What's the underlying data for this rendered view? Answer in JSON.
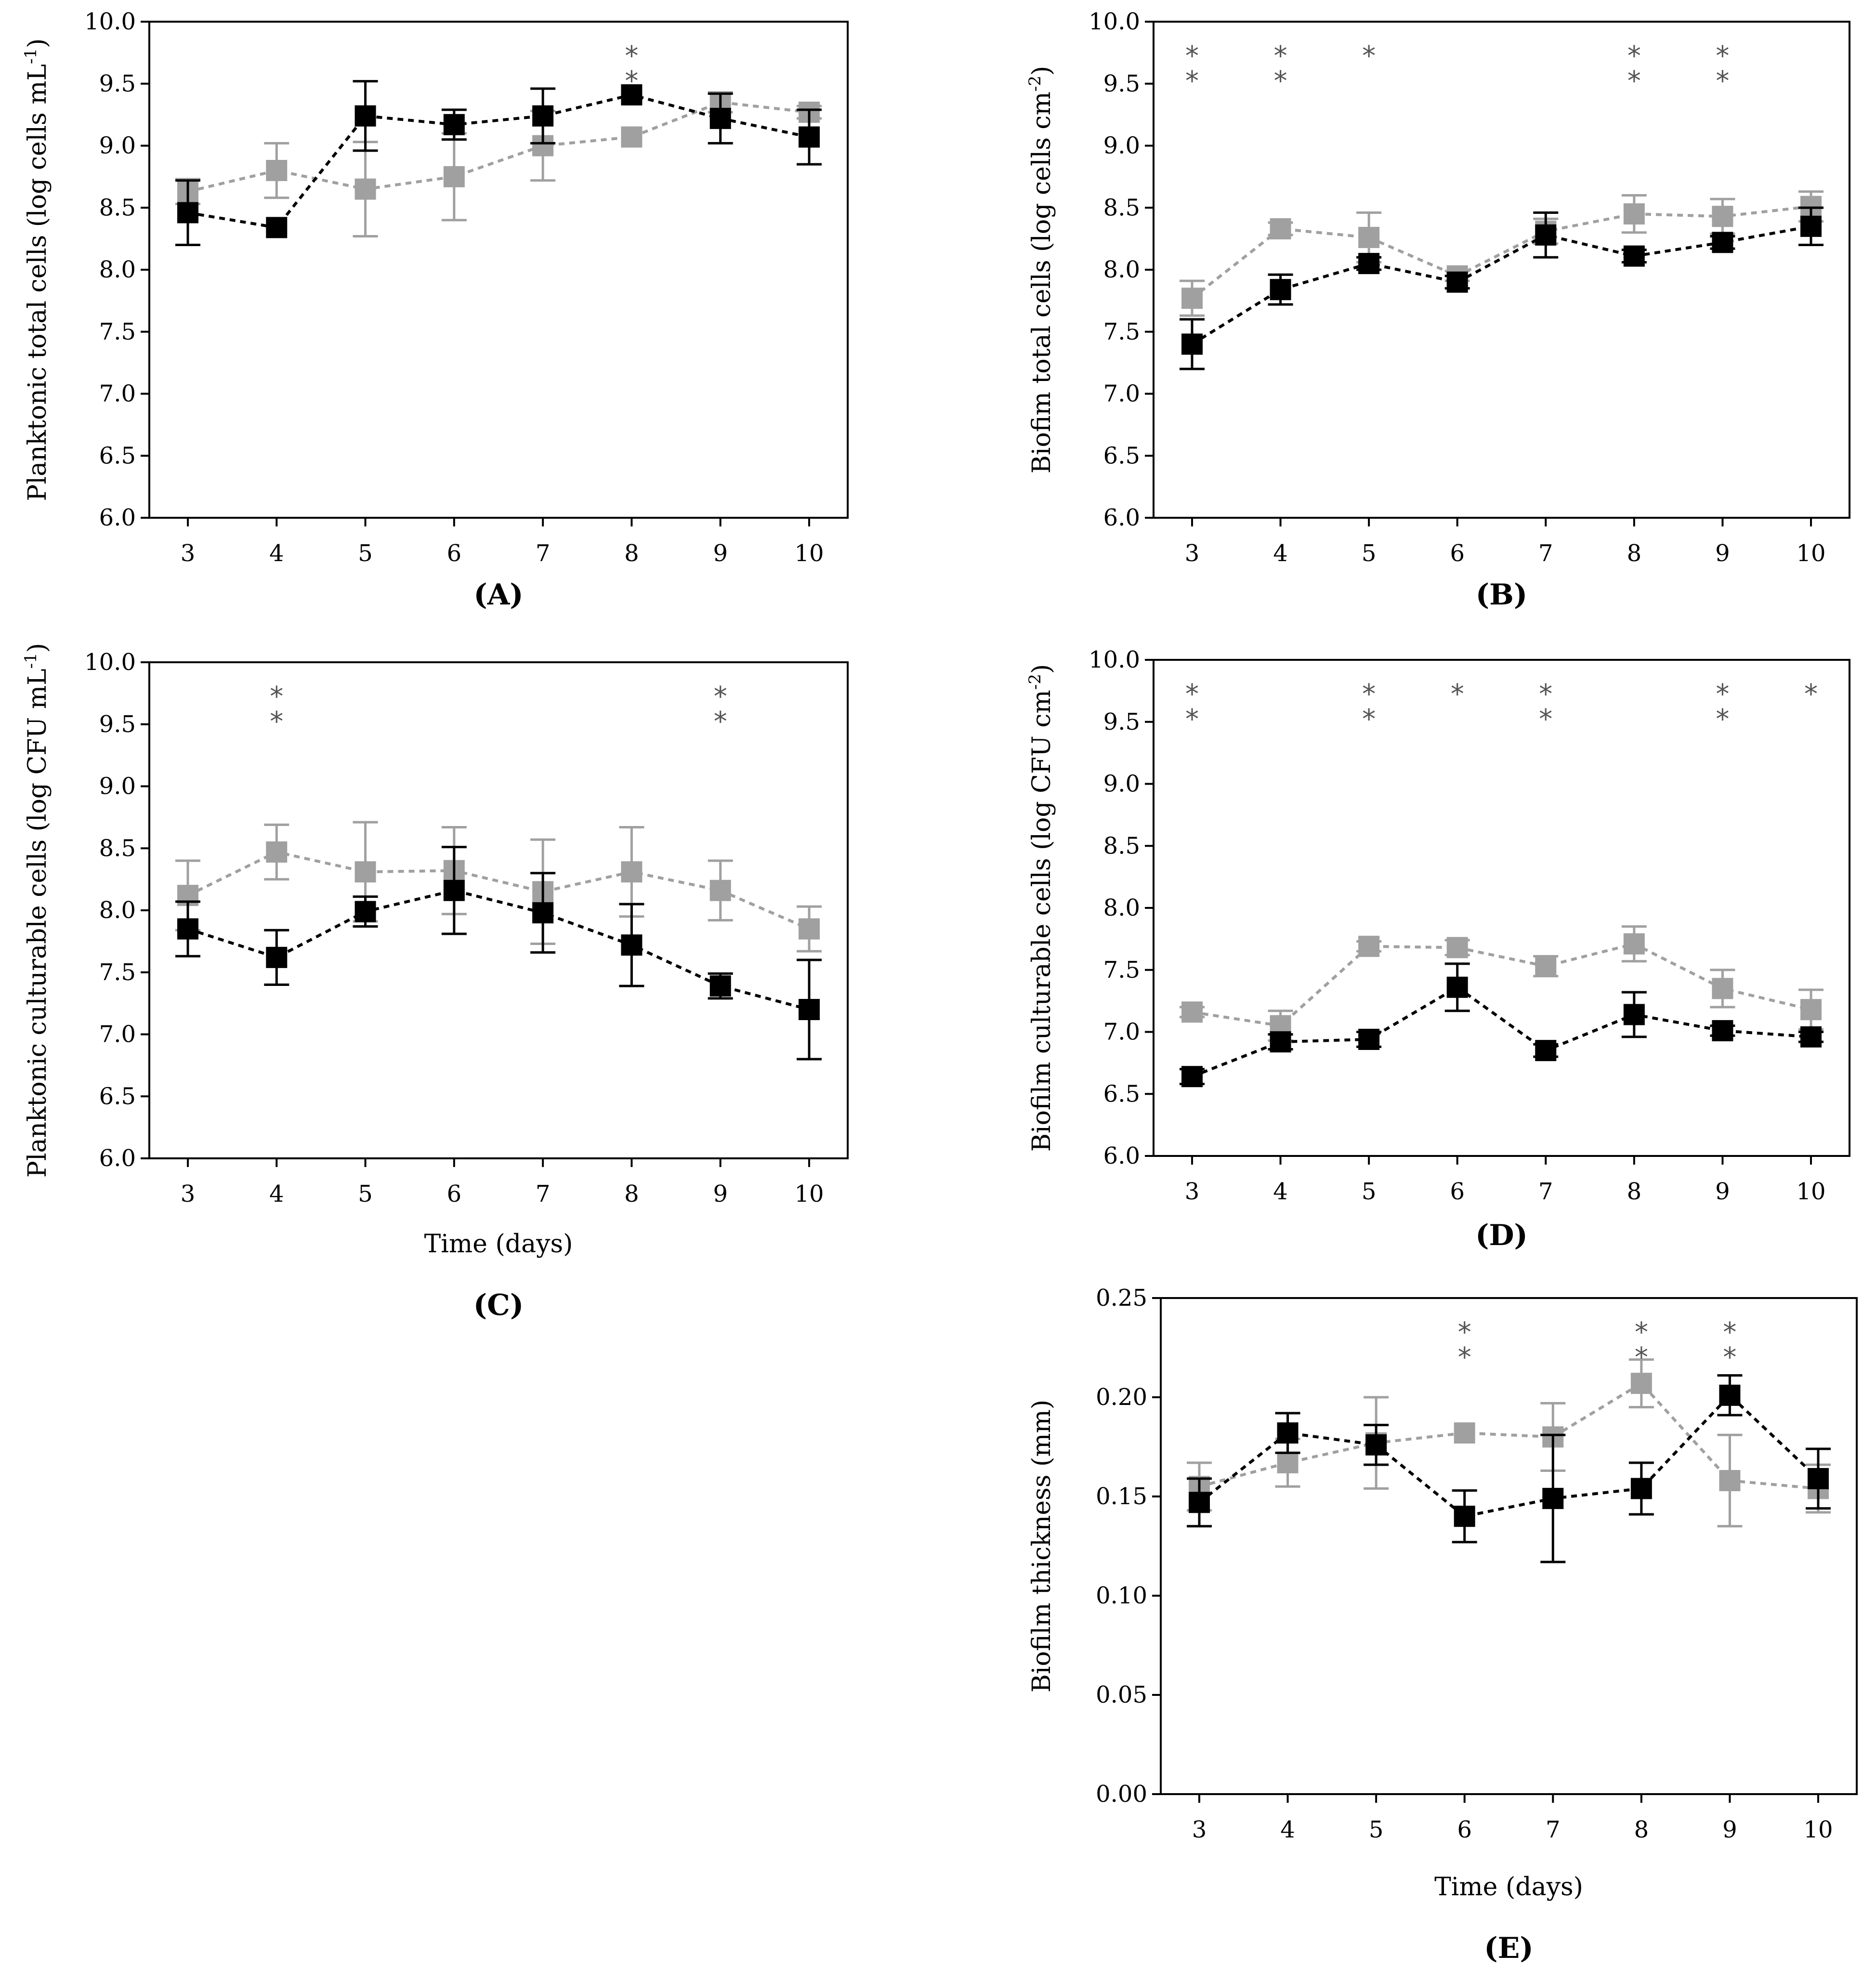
{
  "chart_data": [
    {
      "id": "A",
      "type": "line",
      "panel_label": "(A)",
      "xlabel": "",
      "ylabel": "Planktonic total cells (log cells mL-1)",
      "ylabel_parts": [
        "Planktonic total cells (log cells mL",
        "-1",
        ")"
      ],
      "x": [
        3,
        4,
        5,
        6,
        7,
        8,
        9,
        10
      ],
      "x_ticks": [
        "3",
        "4",
        "5",
        "6",
        "7",
        "8",
        "9",
        "10"
      ],
      "ylim": [
        6.0,
        10.0
      ],
      "y_ticks": [
        "6.0",
        "6.5",
        "7.0",
        "7.5",
        "8.0",
        "8.5",
        "9.0",
        "9.5",
        "10.0"
      ],
      "series": [
        {
          "name": "gray",
          "color": "#a0a0a0",
          "values": [
            8.63,
            8.8,
            8.65,
            8.75,
            9.0,
            9.07,
            9.35,
            9.27
          ],
          "errors": [
            0.1,
            0.22,
            0.38,
            0.35,
            0.28,
            0.0,
            0.08,
            0.05
          ]
        },
        {
          "name": "black",
          "color": "#000000",
          "values": [
            8.46,
            8.34,
            9.24,
            9.17,
            9.24,
            9.41,
            9.22,
            9.07
          ],
          "errors": [
            0.26,
            0.0,
            0.28,
            0.12,
            0.22,
            0.0,
            0.2,
            0.22
          ]
        }
      ],
      "significance": [
        {
          "x": 8,
          "marks": [
            "*",
            "*"
          ]
        }
      ]
    },
    {
      "id": "B",
      "type": "line",
      "panel_label": "(B)",
      "xlabel": "",
      "ylabel": "Biofim total cells (log cells cm-2)",
      "ylabel_parts": [
        "Biofim total cells (log cells cm",
        "-2",
        ")"
      ],
      "x": [
        3,
        4,
        5,
        6,
        7,
        8,
        9,
        10
      ],
      "x_ticks": [
        "3",
        "4",
        "5",
        "6",
        "7",
        "8",
        "9",
        "10"
      ],
      "ylim": [
        6.0,
        10.0
      ],
      "y_ticks": [
        "6.0",
        "6.5",
        "7.0",
        "7.5",
        "8.0",
        "8.5",
        "9.0",
        "9.5",
        "10.0"
      ],
      "series": [
        {
          "name": "gray",
          "color": "#a0a0a0",
          "values": [
            7.77,
            8.33,
            8.26,
            7.95,
            8.31,
            8.45,
            8.43,
            8.51
          ],
          "errors": [
            0.14,
            0.05,
            0.2,
            0.04,
            0.1,
            0.15,
            0.14,
            0.12
          ]
        },
        {
          "name": "black",
          "color": "#000000",
          "values": [
            7.4,
            7.84,
            8.05,
            7.9,
            8.28,
            8.11,
            8.22,
            8.35
          ],
          "errors": [
            0.2,
            0.12,
            0.05,
            0.05,
            0.18,
            0.05,
            0.05,
            0.15
          ]
        }
      ],
      "significance": [
        {
          "x": 3,
          "marks": [
            "*",
            "*"
          ]
        },
        {
          "x": 4,
          "marks": [
            "*",
            "*"
          ]
        },
        {
          "x": 5,
          "marks": [
            "*"
          ]
        },
        {
          "x": 8,
          "marks": [
            "*",
            "*"
          ]
        },
        {
          "x": 9,
          "marks": [
            "*",
            "*"
          ]
        }
      ]
    },
    {
      "id": "C",
      "type": "line",
      "panel_label": "(C)",
      "xlabel": "Time (days)",
      "ylabel": "Planktonic culturable cells (log CFU mL-1)",
      "ylabel_parts": [
        "Planktonic culturable cells (log CFU mL",
        "-1",
        ")"
      ],
      "x": [
        3,
        4,
        5,
        6,
        7,
        8,
        9,
        10
      ],
      "x_ticks": [
        "3",
        "4",
        "5",
        "6",
        "7",
        "8",
        "9",
        "10"
      ],
      "ylim": [
        6.0,
        10.0
      ],
      "y_ticks": [
        "6.0",
        "6.5",
        "7.0",
        "7.5",
        "8.0",
        "8.5",
        "9.0",
        "9.5",
        "10.0"
      ],
      "series": [
        {
          "name": "gray",
          "color": "#a0a0a0",
          "values": [
            8.12,
            8.47,
            8.31,
            8.32,
            8.15,
            8.31,
            8.16,
            7.85
          ],
          "errors": [
            0.28,
            0.22,
            0.4,
            0.35,
            0.42,
            0.36,
            0.24,
            0.18
          ]
        },
        {
          "name": "black",
          "color": "#000000",
          "values": [
            7.85,
            7.62,
            7.99,
            8.16,
            7.98,
            7.72,
            7.39,
            7.2
          ],
          "errors": [
            0.22,
            0.22,
            0.12,
            0.35,
            0.32,
            0.33,
            0.1,
            0.4
          ]
        }
      ],
      "significance": [
        {
          "x": 4,
          "marks": [
            "*",
            "*"
          ]
        },
        {
          "x": 9,
          "marks": [
            "*",
            "*"
          ]
        }
      ]
    },
    {
      "id": "D",
      "type": "line",
      "panel_label": "(D)",
      "xlabel": "",
      "ylabel": "Biofilm culturable cells (log CFU cm-2)",
      "ylabel_parts": [
        "Biofilm culturable cells (log CFU cm",
        "-2",
        ")"
      ],
      "x": [
        3,
        4,
        5,
        6,
        7,
        8,
        9,
        10
      ],
      "x_ticks": [
        "3",
        "4",
        "5",
        "6",
        "7",
        "8",
        "9",
        "10"
      ],
      "ylim": [
        6.0,
        10.0
      ],
      "y_ticks": [
        "6.0",
        "6.5",
        "7.0",
        "7.5",
        "8.0",
        "8.5",
        "9.0",
        "9.5",
        "10.0"
      ],
      "series": [
        {
          "name": "gray",
          "color": "#a0a0a0",
          "values": [
            7.16,
            7.05,
            7.69,
            7.68,
            7.53,
            7.71,
            7.35,
            7.18
          ],
          "errors": [
            0.04,
            0.12,
            0.04,
            0.06,
            0.08,
            0.14,
            0.15,
            0.16
          ]
        },
        {
          "name": "black",
          "color": "#000000",
          "values": [
            6.64,
            6.92,
            6.94,
            7.36,
            6.85,
            7.14,
            7.01,
            6.96
          ],
          "errors": [
            0.06,
            0.06,
            0.06,
            0.19,
            0.05,
            0.18,
            0.04,
            0.04
          ]
        }
      ],
      "significance": [
        {
          "x": 3,
          "marks": [
            "*",
            "*"
          ]
        },
        {
          "x": 5,
          "marks": [
            "*",
            "*"
          ]
        },
        {
          "x": 6,
          "marks": [
            "*"
          ]
        },
        {
          "x": 7,
          "marks": [
            "*",
            "*"
          ]
        },
        {
          "x": 9,
          "marks": [
            "*",
            "*"
          ]
        },
        {
          "x": 10,
          "marks": [
            "*"
          ]
        }
      ]
    },
    {
      "id": "E",
      "type": "line",
      "panel_label": "(E)",
      "xlabel": "Time (days)",
      "ylabel": "Biofilm thickness (mm)",
      "ylabel_parts": [
        "Biofilm thickness (mm)",
        "",
        ""
      ],
      "x": [
        3,
        4,
        5,
        6,
        7,
        8,
        9,
        10
      ],
      "x_ticks": [
        "3",
        "4",
        "5",
        "6",
        "7",
        "8",
        "9",
        "10"
      ],
      "ylim": [
        0.0,
        0.25
      ],
      "y_ticks": [
        "0.00",
        "0.05",
        "0.10",
        "0.15",
        "0.20",
        "0.25"
      ],
      "series": [
        {
          "name": "gray",
          "color": "#a0a0a0",
          "values": [
            0.155,
            0.167,
            0.177,
            0.182,
            0.18,
            0.207,
            0.158,
            0.154
          ],
          "errors": [
            0.012,
            0.012,
            0.023,
            0.0,
            0.017,
            0.012,
            0.023,
            0.012
          ]
        },
        {
          "name": "black",
          "color": "#000000",
          "values": [
            0.147,
            0.182,
            0.176,
            0.14,
            0.149,
            0.154,
            0.201,
            0.159
          ],
          "errors": [
            0.012,
            0.01,
            0.01,
            0.013,
            0.032,
            0.013,
            0.01,
            0.015
          ]
        }
      ],
      "significance": [
        {
          "x": 6,
          "marks": [
            "*",
            "*"
          ]
        },
        {
          "x": 8,
          "marks": [
            "*",
            "*"
          ]
        },
        {
          "x": 9,
          "marks": [
            "*",
            "*"
          ]
        }
      ]
    }
  ]
}
